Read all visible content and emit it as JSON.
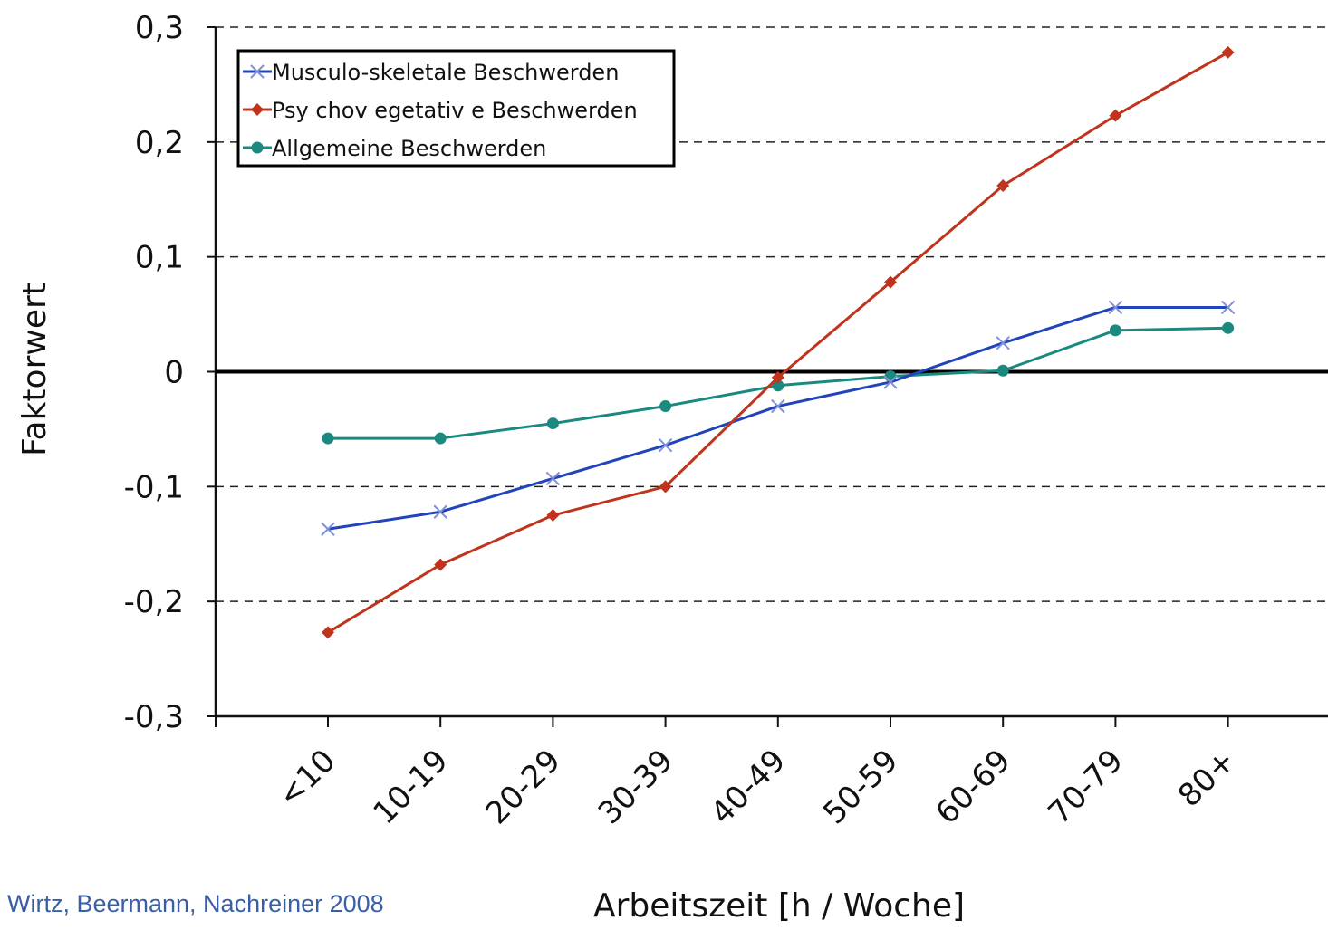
{
  "chart_data": {
    "type": "line",
    "title": "",
    "xlabel": "Arbeitszeit [h / Woche]",
    "ylabel": "Faktorwert",
    "categories": [
      "<10",
      "10-19",
      "20-29",
      "30-39",
      "40-49",
      "50-59",
      "60-69",
      "70-79",
      "80+"
    ],
    "y_ticks": [
      "0,3",
      "0,2",
      "0,1",
      "0",
      "-0,1",
      "-0,2",
      "-0,3"
    ],
    "y_tick_values": [
      0.3,
      0.2,
      0.1,
      0,
      -0.1,
      -0.2,
      -0.3
    ],
    "ylim": [
      -0.3,
      0.3
    ],
    "grid": "horizontal dashed",
    "zero_line": true,
    "legend_position": "top-left",
    "series": [
      {
        "name": "Musculo-skeletale Beschwerden",
        "color": "#2244bb",
        "marker": "x",
        "values": [
          -0.137,
          -0.122,
          -0.093,
          -0.064,
          -0.03,
          -0.009,
          0.025,
          0.056,
          0.056
        ]
      },
      {
        "name": "Psy chov egetativ e Beschwerden",
        "color": "#c0341d",
        "marker": "diamond",
        "values": [
          -0.227,
          -0.168,
          -0.125,
          -0.1,
          -0.005,
          0.078,
          0.162,
          0.223,
          0.278
        ]
      },
      {
        "name": "Allgemeine Beschwerden",
        "color": "#1a8a80",
        "marker": "circle",
        "values": [
          -0.058,
          -0.058,
          -0.045,
          -0.03,
          -0.012,
          -0.004,
          0.001,
          0.036,
          0.038
        ]
      }
    ]
  },
  "citation": "Wirtz, Beermann, Nachreiner 2008"
}
